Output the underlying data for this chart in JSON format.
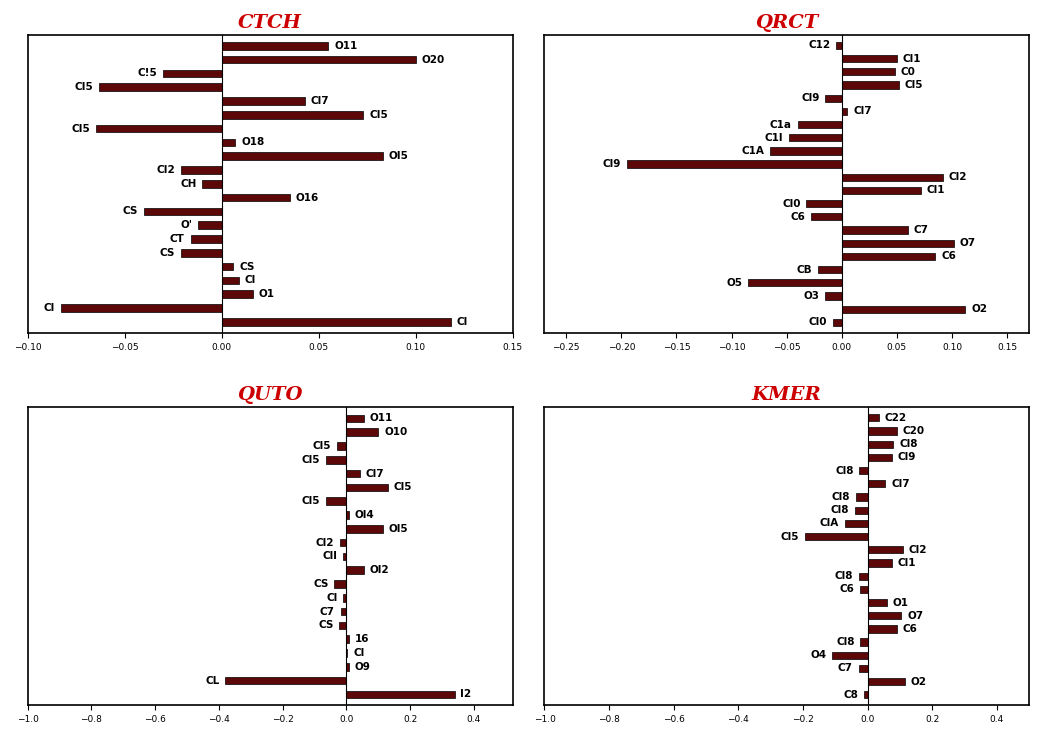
{
  "bar_color": "#5C0808",
  "bar_edgecolor": "#000000",
  "title_color": "#CC0000",
  "bar_height": 0.55,
  "label_fontsize": 7.5,
  "tick_fontsize": 6.5,
  "charts": [
    {
      "title": "CTCH",
      "xlim": [
        -0.1,
        0.15
      ],
      "rows": [
        [
          "",
          0,
          "O11",
          0.055
        ],
        [
          "",
          0,
          "O20",
          0.1
        ],
        [
          "C!5",
          -0.03,
          "",
          0
        ],
        [
          "CI5",
          -0.063,
          "",
          0
        ],
        [
          "",
          0,
          "Cl7",
          0.043
        ],
        [
          "",
          0,
          "CI5",
          0.073
        ],
        [
          "CI5",
          -0.065,
          "",
          0
        ],
        [
          "",
          0,
          "O18",
          0.007
        ],
        [
          "",
          0,
          "OI5",
          0.083
        ],
        [
          "CI2",
          -0.021,
          "",
          0
        ],
        [
          "CH",
          -0.01,
          "",
          0
        ],
        [
          "",
          0,
          "O16",
          0.035
        ],
        [
          "CS",
          -0.04,
          "",
          0
        ],
        [
          "O'",
          -0.012,
          "",
          0
        ],
        [
          "CT",
          -0.016,
          "",
          0
        ],
        [
          "CS",
          -0.021,
          "",
          0
        ],
        [
          "",
          0,
          "CS",
          0.006
        ],
        [
          "",
          0,
          "Cl",
          0.009
        ],
        [
          "",
          0,
          "O1",
          0.016
        ],
        [
          "Cl",
          -0.083,
          "",
          0
        ],
        [
          "",
          0,
          "Cl",
          0.118
        ]
      ]
    },
    {
      "title": "QRCT",
      "xlim": [
        -0.27,
        0.17
      ],
      "rows": [
        [
          "C12",
          -0.005,
          "",
          0
        ],
        [
          "",
          0,
          "Cl1",
          0.05
        ],
        [
          "",
          0,
          "C0",
          0.048
        ],
        [
          "",
          0,
          "Cl5",
          0.052
        ],
        [
          "Cl9",
          -0.015,
          "",
          0
        ],
        [
          "",
          0,
          "Cl7",
          0.005
        ],
        [
          "C1a",
          -0.04,
          "",
          0
        ],
        [
          "C1l",
          -0.048,
          "",
          0
        ],
        [
          "C1A",
          -0.065,
          "",
          0
        ],
        [
          "Cl9",
          -0.195,
          "",
          0
        ],
        [
          "",
          0,
          "Cl2",
          0.092
        ],
        [
          "",
          0,
          "Cl1",
          0.072
        ],
        [
          "Cl0",
          -0.032,
          "",
          0
        ],
        [
          "C6",
          -0.028,
          "",
          0
        ],
        [
          "",
          0,
          "C7",
          0.06
        ],
        [
          "",
          0,
          "O7",
          0.102
        ],
        [
          "",
          0,
          "C6",
          0.085
        ],
        [
          "CB",
          -0.022,
          "",
          0
        ],
        [
          "O5",
          -0.085,
          "",
          0
        ],
        [
          "O3",
          -0.015,
          "",
          0
        ],
        [
          "",
          0,
          "O2",
          0.112
        ],
        [
          "Cl0",
          -0.008,
          "",
          0
        ]
      ]
    },
    {
      "title": "QUTO",
      "xlim": [
        -1.0,
        0.522
      ],
      "rows": [
        [
          "",
          0,
          "O11",
          0.055
        ],
        [
          "",
          0,
          "O10",
          0.1
        ],
        [
          "Cl5",
          -0.03,
          "",
          0
        ],
        [
          "Cl5",
          -0.063,
          "",
          0
        ],
        [
          "",
          0,
          "Cl7",
          0.043
        ],
        [
          "",
          0,
          "Cl5",
          0.13
        ],
        [
          "Cl5",
          -0.065,
          "",
          0
        ],
        [
          "",
          0,
          "Ol4",
          0.007
        ],
        [
          "",
          0,
          "Ol5",
          0.115
        ],
        [
          "Cl2",
          -0.02,
          "",
          0
        ],
        [
          "Cll",
          -0.01,
          "",
          0
        ],
        [
          "",
          0,
          "Ol2",
          0.055
        ],
        [
          "CS",
          -0.038,
          "",
          0
        ],
        [
          "Cl",
          -0.01,
          "",
          0
        ],
        [
          "C7",
          -0.018,
          "",
          0
        ],
        [
          "CS",
          -0.022,
          "",
          0
        ],
        [
          "",
          0,
          "16",
          0.007
        ],
        [
          "",
          0,
          "Cl",
          0.003
        ],
        [
          "",
          0,
          "O9",
          0.008
        ],
        [
          "CL",
          -0.38,
          "",
          0
        ],
        [
          "",
          0,
          "I2",
          0.34
        ]
      ]
    },
    {
      "title": "KMER",
      "xlim": [
        -1.001,
        0.5
      ],
      "rows": [
        [
          "",
          0,
          "C22",
          0.035
        ],
        [
          "",
          0,
          "C20",
          0.09
        ],
        [
          "",
          0,
          "Cl8",
          0.08
        ],
        [
          "",
          0,
          "Cl9",
          0.075
        ],
        [
          "Cl8",
          -0.025,
          "",
          0
        ],
        [
          "",
          0,
          "Cl7",
          0.055
        ],
        [
          "Cl8",
          -0.035,
          "",
          0
        ],
        [
          "Cl8",
          -0.04,
          "",
          0
        ],
        [
          "ClA",
          -0.07,
          "",
          0
        ],
        [
          "Cl5",
          -0.195,
          "",
          0
        ],
        [
          "",
          0,
          "Cl2",
          0.11
        ],
        [
          "",
          0,
          "Cl1",
          0.075
        ],
        [
          "Cl8",
          -0.028,
          "",
          0
        ],
        [
          "C6",
          -0.022,
          "",
          0
        ],
        [
          "",
          0,
          "O1",
          0.06
        ],
        [
          "",
          0,
          "O7",
          0.105
        ],
        [
          "",
          0,
          "C6",
          0.09
        ],
        [
          "Cl8",
          -0.022,
          "",
          0
        ],
        [
          "O4",
          -0.11,
          "",
          0
        ],
        [
          "C7",
          -0.028,
          "",
          0
        ],
        [
          "",
          0,
          "O2",
          0.115
        ],
        [
          "C8",
          -0.01,
          "",
          0
        ]
      ]
    }
  ]
}
